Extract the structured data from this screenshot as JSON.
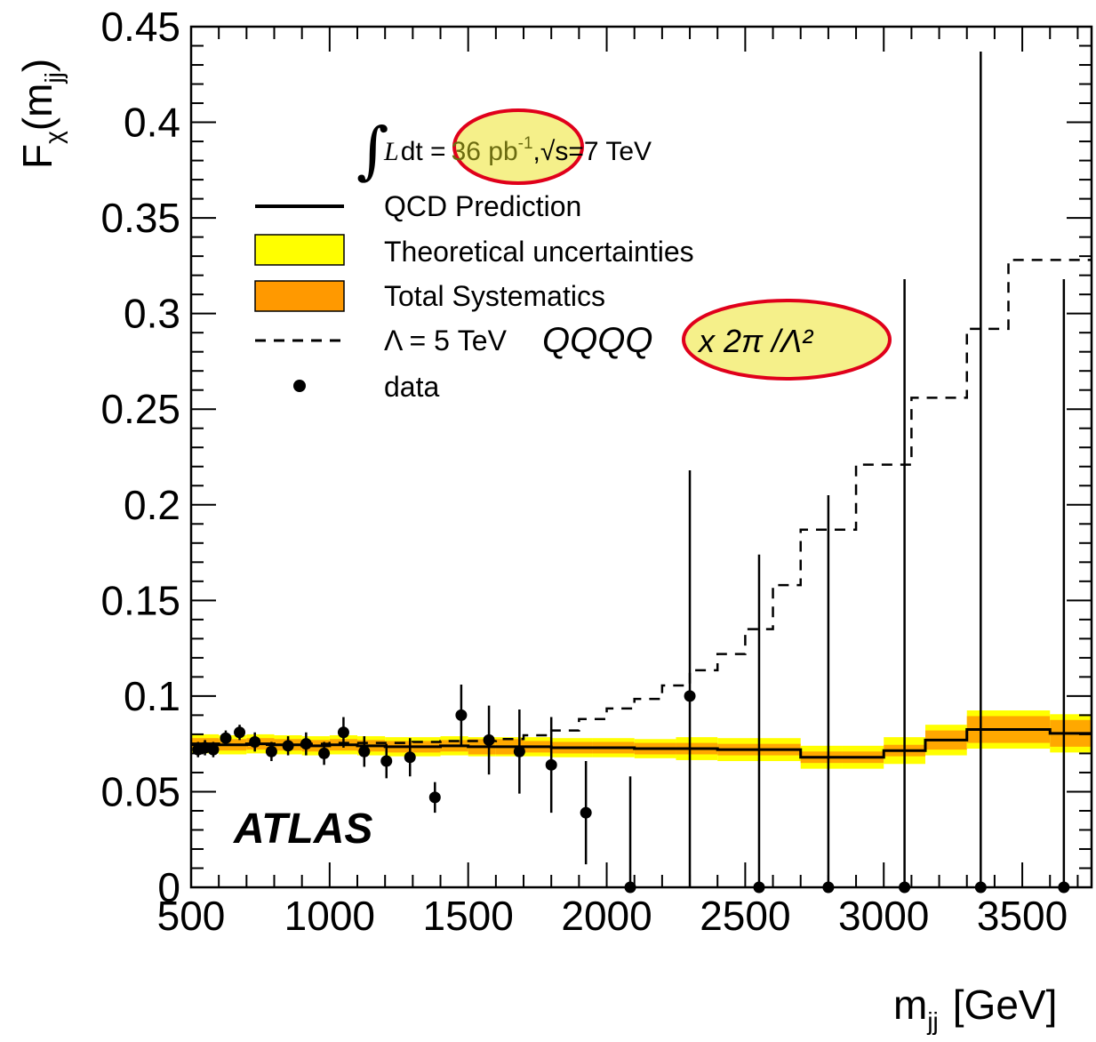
{
  "chart_data": {
    "type": "scatter",
    "xlabel": "m",
    "xlabel_sub": "jj",
    "xlabel_unit": "[GeV]",
    "ylabel": "F",
    "ylabel_sub1": "χ",
    "ylabel_mid": "(m",
    "ylabel_sub2": "jj",
    "ylabel_close": ")",
    "xlim": [
      500,
      3750
    ],
    "ylim": [
      0,
      0.45
    ],
    "x_ticks": [
      500,
      1000,
      1500,
      2000,
      2500,
      3000,
      3500
    ],
    "x_tick_labels": [
      "500",
      "1000",
      "1500",
      "2000",
      "2500",
      "3000",
      "3500"
    ],
    "y_ticks": [
      0,
      0.05,
      0.1,
      0.15,
      0.2,
      0.25,
      0.3,
      0.35,
      0.4,
      0.45
    ],
    "y_tick_labels": [
      "0",
      "0.05",
      "0.1",
      "0.15",
      "0.2",
      "0.25",
      "0.3",
      "0.35",
      "0.4",
      "0.45"
    ],
    "experiment_label": "ATLAS",
    "luminosity": {
      "integral": "∫",
      "L": "L",
      "dt": "dt =",
      "value": "36 pb",
      "exponent": "-1",
      "comma": ",",
      "sqrt": "√",
      "energy": "s=7 TeV"
    },
    "legend": [
      {
        "label": "QCD Prediction",
        "kind": "line"
      },
      {
        "label": "Theoretical uncertainties",
        "kind": "box",
        "color": "#ffff00"
      },
      {
        "label": "Total Systematics",
        "kind": "box",
        "color": "#ff9900"
      },
      {
        "label": "Λ = 5 TeV",
        "kind": "dashed"
      },
      {
        "label": "data",
        "kind": "marker"
      }
    ],
    "annotation": {
      "text_qqqq": "QQQQ",
      "text_formula": "x 2π /Λ²",
      "highlight_color": "#f5f08a",
      "circle_color": "#e0001b"
    },
    "qcd_prediction": {
      "bins": [
        [
          500,
          600
        ],
        [
          600,
          700
        ],
        [
          700,
          800
        ],
        [
          800,
          900
        ],
        [
          900,
          1000
        ],
        [
          1000,
          1100
        ],
        [
          1100,
          1200
        ],
        [
          1200,
          1300
        ],
        [
          1300,
          1400
        ],
        [
          1400,
          1500
        ],
        [
          1500,
          1600
        ],
        [
          1600,
          1700
        ],
        [
          1700,
          1800
        ],
        [
          1800,
          1950
        ],
        [
          1950,
          2100
        ],
        [
          2100,
          2250
        ],
        [
          2250,
          2400
        ],
        [
          2400,
          2550
        ],
        [
          2550,
          2700
        ],
        [
          2700,
          2850
        ],
        [
          2850,
          3000
        ],
        [
          3000,
          3150
        ],
        [
          3150,
          3300
        ],
        [
          3300,
          3450
        ],
        [
          3450,
          3600
        ],
        [
          3600,
          3750
        ]
      ],
      "values": [
        0.075,
        0.0745,
        0.075,
        0.0745,
        0.074,
        0.0745,
        0.074,
        0.0735,
        0.0735,
        0.074,
        0.0735,
        0.0735,
        0.0735,
        0.073,
        0.073,
        0.0725,
        0.0725,
        0.072,
        0.072,
        0.068,
        0.068,
        0.0715,
        0.077,
        0.0825,
        0.0825,
        0.0805
      ],
      "theory_halfwidth": [
        0.005,
        0.005,
        0.005,
        0.005,
        0.005,
        0.005,
        0.005,
        0.005,
        0.005,
        0.005,
        0.005,
        0.005,
        0.005,
        0.005,
        0.005,
        0.005,
        0.006,
        0.006,
        0.006,
        0.006,
        0.006,
        0.007,
        0.008,
        0.01,
        0.01,
        0.01
      ],
      "total_halfwidth": [
        0.003,
        0.003,
        0.003,
        0.003,
        0.003,
        0.003,
        0.003,
        0.003,
        0.003,
        0.003,
        0.004,
        0.004,
        0.003,
        0.003,
        0.003,
        0.003,
        0.003,
        0.003,
        0.003,
        0.003,
        0.003,
        0.003,
        0.005,
        0.007,
        0.007,
        0.007
      ],
      "theory_color": "#ffff00",
      "total_color": "#ff9900"
    },
    "lambda_5tev": {
      "bins": [
        [
          500,
          600
        ],
        [
          600,
          700
        ],
        [
          700,
          800
        ],
        [
          800,
          900
        ],
        [
          900,
          1000
        ],
        [
          1000,
          1100
        ],
        [
          1100,
          1200
        ],
        [
          1200,
          1300
        ],
        [
          1300,
          1400
        ],
        [
          1400,
          1500
        ],
        [
          1500,
          1600
        ],
        [
          1600,
          1700
        ],
        [
          1700,
          1800
        ],
        [
          1800,
          1900
        ],
        [
          1900,
          2000
        ],
        [
          2000,
          2100
        ],
        [
          2100,
          2200
        ],
        [
          2200,
          2300
        ],
        [
          2300,
          2400
        ],
        [
          2400,
          2500
        ],
        [
          2500,
          2600
        ],
        [
          2600,
          2700
        ],
        [
          2700,
          2800
        ],
        [
          2800,
          2900
        ],
        [
          2900,
          3000
        ],
        [
          3000,
          3100
        ],
        [
          3100,
          3200
        ],
        [
          3200,
          3300
        ],
        [
          3300,
          3450
        ],
        [
          3450,
          3750
        ]
      ],
      "values": [
        0.0745,
        0.0745,
        0.0745,
        0.0745,
        0.075,
        0.0755,
        0.0755,
        0.0755,
        0.076,
        0.0765,
        0.0765,
        0.0775,
        0.0795,
        0.082,
        0.088,
        0.0935,
        0.0985,
        0.1055,
        0.1135,
        0.122,
        0.135,
        0.158,
        0.187,
        0.187,
        0.221,
        0.221,
        0.256,
        0.256,
        0.292,
        0.328
      ]
    },
    "data_points": [
      {
        "x": 525,
        "y": 0.072,
        "err": 0.004
      },
      {
        "x": 550,
        "y": 0.073,
        "err": 0.004
      },
      {
        "x": 580,
        "y": 0.072,
        "err": 0.004
      },
      {
        "x": 625,
        "y": 0.078,
        "err": 0.004
      },
      {
        "x": 675,
        "y": 0.081,
        "err": 0.004
      },
      {
        "x": 730,
        "y": 0.076,
        "err": 0.005
      },
      {
        "x": 790,
        "y": 0.071,
        "err": 0.005
      },
      {
        "x": 850,
        "y": 0.074,
        "err": 0.005
      },
      {
        "x": 915,
        "y": 0.075,
        "err": 0.006
      },
      {
        "x": 980,
        "y": 0.07,
        "err": 0.006
      },
      {
        "x": 1050,
        "y": 0.081,
        "err": 0.008
      },
      {
        "x": 1125,
        "y": 0.071,
        "err": 0.008
      },
      {
        "x": 1205,
        "y": 0.066,
        "err": 0.009
      },
      {
        "x": 1290,
        "y": 0.068,
        "err": 0.01
      },
      {
        "x": 1380,
        "y": 0.047,
        "err": 0.008
      },
      {
        "x": 1475,
        "y": 0.09,
        "err": 0.016
      },
      {
        "x": 1575,
        "y": 0.077,
        "err": 0.018
      },
      {
        "x": 1685,
        "y": 0.071,
        "err": 0.022
      },
      {
        "x": 1800,
        "y": 0.064,
        "err": 0.025
      },
      {
        "x": 1925,
        "y": 0.039,
        "err": 0.027
      },
      {
        "x": 2085,
        "y": 0.0,
        "err_up": 0.058,
        "err_down": 0.0
      },
      {
        "x": 2300,
        "y": 0.1,
        "err": 0.118
      },
      {
        "x": 2550,
        "y": 0.0,
        "err_up": 0.174,
        "err_down": 0.0
      },
      {
        "x": 2800,
        "y": 0.0,
        "err_up": 0.205,
        "err_down": 0.0
      },
      {
        "x": 3075,
        "y": 0.0,
        "err_up": 0.318,
        "err_down": 0.0
      },
      {
        "x": 3350,
        "y": 0.0,
        "err_up": 0.437,
        "err_down": 0.0
      },
      {
        "x": 3650,
        "y": 0.0,
        "err_up": 0.318,
        "err_down": 0.0
      }
    ]
  }
}
